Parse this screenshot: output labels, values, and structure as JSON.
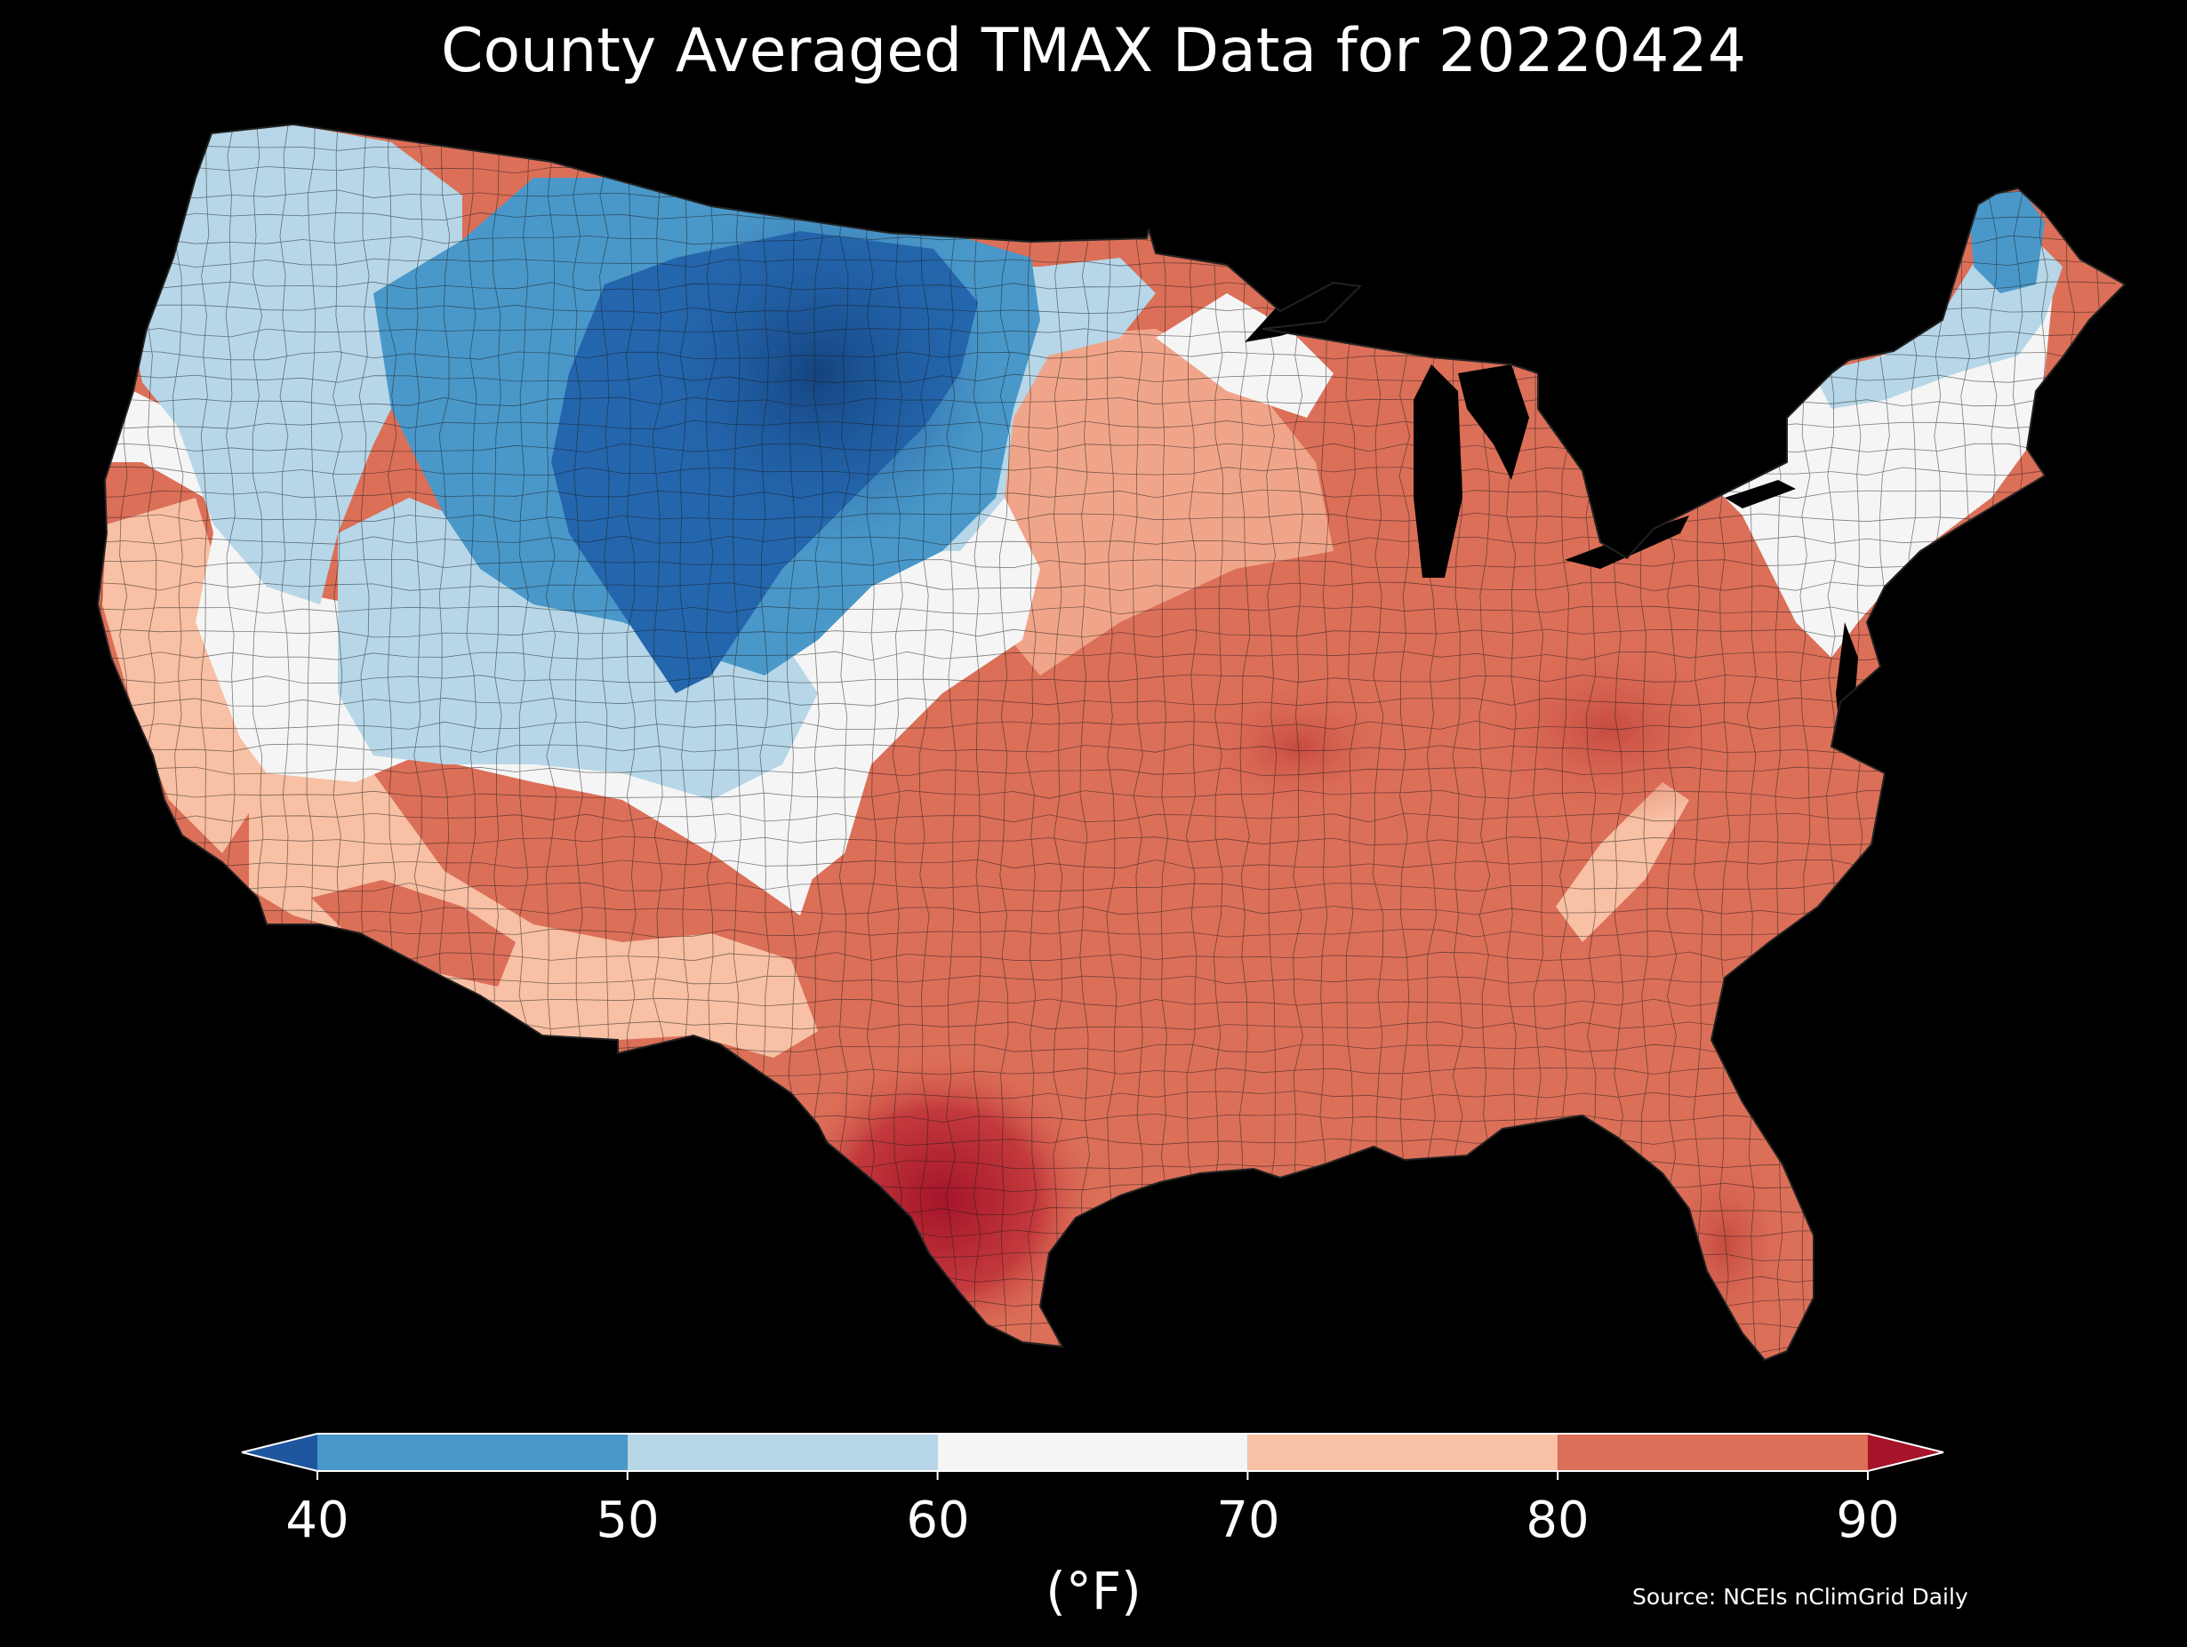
{
  "title": "County Averaged TMAX Data for 20220424",
  "map": {
    "region": "contiguous-us-counties",
    "variable": "TMAX",
    "colors": {
      "below_40": "#1f56a0",
      "40_50": "#4a98c9",
      "50_60": "#b7d7e8",
      "60_70": "#f5f5f5",
      "70_80": "#f8c0a4",
      "80_90": "#dc6f58",
      "above_90": "#a51429",
      "county_border": "#1a1a1a"
    }
  },
  "colorbar": {
    "ticks": [
      "40",
      "50",
      "60",
      "70",
      "80",
      "90"
    ],
    "tick_values": [
      40,
      50,
      60,
      70,
      80,
      90
    ],
    "unit_label": "(°F)",
    "extend": "both"
  },
  "source": "Source: NCEIs nClimGrid Daily"
}
